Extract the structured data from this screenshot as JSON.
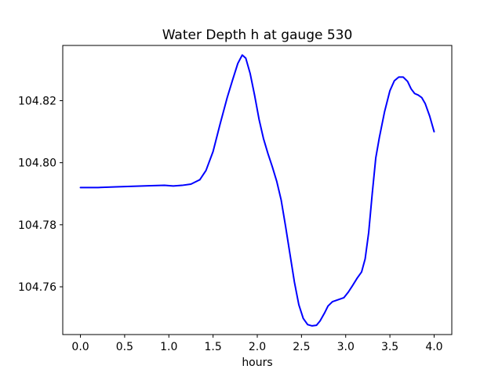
{
  "chart_data": {
    "type": "line",
    "title": "Water Depth h at gauge 530",
    "xlabel": "hours",
    "ylabel": "",
    "xlim": [
      -0.2,
      4.2
    ],
    "ylim": [
      104.7446,
      104.8378
    ],
    "xticks": [
      0.0,
      0.5,
      1.0,
      1.5,
      2.0,
      2.5,
      3.0,
      3.5,
      4.0
    ],
    "xtick_labels": [
      "0.0",
      "0.5",
      "1.0",
      "1.5",
      "2.0",
      "2.5",
      "3.0",
      "3.5",
      "4.0"
    ],
    "yticks": [
      104.76,
      104.78,
      104.8,
      104.82
    ],
    "ytick_labels": [
      "104.76",
      "104.78",
      "104.80",
      "104.82"
    ],
    "grid": false,
    "legend": "none",
    "series": [
      {
        "color": "#0000ff",
        "x": [
          0.0,
          0.2,
          0.4,
          0.6,
          0.8,
          0.95,
          1.05,
          1.15,
          1.25,
          1.35,
          1.42,
          1.5,
          1.58,
          1.66,
          1.72,
          1.78,
          1.83,
          1.87,
          1.92,
          1.97,
          2.02,
          2.07,
          2.12,
          2.17,
          2.22,
          2.27,
          2.32,
          2.37,
          2.42,
          2.47,
          2.52,
          2.57,
          2.62,
          2.67,
          2.71,
          2.76,
          2.8,
          2.85,
          2.92,
          2.98,
          3.03,
          3.08,
          3.13,
          3.18,
          3.22,
          3.26,
          3.3,
          3.34,
          3.38,
          3.44,
          3.5,
          3.55,
          3.6,
          3.65,
          3.7,
          3.74,
          3.78,
          3.82,
          3.86,
          3.9,
          3.95,
          4.0
        ],
        "y": [
          104.792,
          104.792,
          104.7922,
          104.7924,
          104.7926,
          104.7927,
          104.7925,
          104.7927,
          104.7931,
          104.7945,
          104.7975,
          104.8036,
          104.8125,
          104.821,
          104.8266,
          104.832,
          104.8347,
          104.8337,
          104.8287,
          104.8217,
          104.814,
          104.8078,
          104.803,
          104.7987,
          104.794,
          104.788,
          104.7795,
          104.7705,
          104.7615,
          104.7542,
          104.7498,
          104.7478,
          104.7474,
          104.7476,
          104.749,
          104.7515,
          104.7538,
          104.7552,
          104.7559,
          104.7565,
          104.7583,
          104.7605,
          104.7628,
          104.7648,
          104.769,
          104.7775,
          104.79,
          104.8015,
          104.808,
          104.8165,
          104.8232,
          104.8264,
          104.8276,
          104.8276,
          104.8262,
          104.8238,
          104.8223,
          104.8218,
          104.821,
          104.819,
          104.815,
          104.81
        ]
      }
    ]
  }
}
